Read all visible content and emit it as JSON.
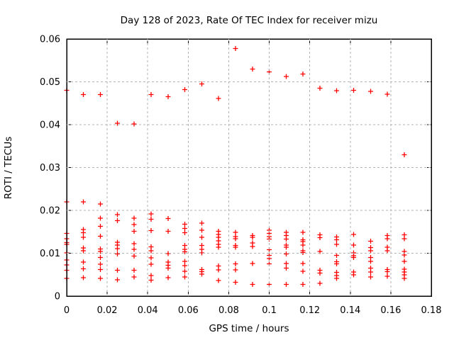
{
  "chart_data": {
    "type": "scatter",
    "title": "Day 128 of 2023, Rate Of TEC Index for receiver mizu",
    "xlabel": "GPS time / hours",
    "ylabel": "ROTI / TECUs",
    "xlim": [
      0,
      0.18
    ],
    "ylim": [
      0,
      0.06
    ],
    "xticks": [
      "0",
      "0.02",
      "0.04",
      "0.06",
      "0.08",
      "0.1",
      "0.12",
      "0.14",
      "0.16",
      "0.18"
    ],
    "yticks": [
      "0",
      "0.01",
      "0.02",
      "0.03",
      "0.04",
      "0.05",
      "0.06"
    ],
    "grid": true,
    "legend": "none",
    "marker": "plus",
    "colors": {
      "marker": "#ff0000",
      "grid": "#b3b3b3",
      "axis": "#000000",
      "text": "#000000",
      "background": "#ffffff"
    },
    "points": [
      [
        0,
        0.048
      ],
      [
        0,
        0.022
      ],
      [
        0,
        0.0146
      ],
      [
        0,
        0.0134
      ],
      [
        0,
        0.0125
      ],
      [
        0,
        0.0121
      ],
      [
        0,
        0.0101
      ],
      [
        0,
        0.0084
      ],
      [
        0,
        0.0073
      ],
      [
        0,
        0.006
      ],
      [
        0,
        0.0041
      ],
      [
        0.0083,
        0.047
      ],
      [
        0.0083,
        0.022
      ],
      [
        0.0083,
        0.0155
      ],
      [
        0.0083,
        0.0148
      ],
      [
        0.0083,
        0.0137
      ],
      [
        0.0083,
        0.0112
      ],
      [
        0.0083,
        0.0106
      ],
      [
        0.0083,
        0.0079
      ],
      [
        0.0083,
        0.0064
      ],
      [
        0.0083,
        0.0043
      ],
      [
        0.0167,
        0.047
      ],
      [
        0.0167,
        0.0215
      ],
      [
        0.0167,
        0.0182
      ],
      [
        0.0167,
        0.0163
      ],
      [
        0.0167,
        0.014
      ],
      [
        0.0167,
        0.011
      ],
      [
        0.0167,
        0.0104
      ],
      [
        0.0167,
        0.009
      ],
      [
        0.0167,
        0.0074
      ],
      [
        0.0167,
        0.0062
      ],
      [
        0.0167,
        0.0041
      ],
      [
        0.025,
        0.0403
      ],
      [
        0.025,
        0.019
      ],
      [
        0.025,
        0.0176
      ],
      [
        0.025,
        0.0126
      ],
      [
        0.025,
        0.0119
      ],
      [
        0.025,
        0.0111
      ],
      [
        0.025,
        0.0098
      ],
      [
        0.025,
        0.006
      ],
      [
        0.025,
        0.0038
      ],
      [
        0.0333,
        0.0402
      ],
      [
        0.0333,
        0.0182
      ],
      [
        0.0333,
        0.0167
      ],
      [
        0.0333,
        0.0151
      ],
      [
        0.0333,
        0.0122
      ],
      [
        0.0333,
        0.0109
      ],
      [
        0.0333,
        0.0093
      ],
      [
        0.0333,
        0.006
      ],
      [
        0.0333,
        0.0045
      ],
      [
        0.0417,
        0.047
      ],
      [
        0.0417,
        0.0192
      ],
      [
        0.0417,
        0.0179
      ],
      [
        0.0417,
        0.0153
      ],
      [
        0.0417,
        0.0115
      ],
      [
        0.0417,
        0.0106
      ],
      [
        0.0417,
        0.0089
      ],
      [
        0.0417,
        0.0074
      ],
      [
        0.0417,
        0.0048
      ],
      [
        0.0417,
        0.0037
      ],
      [
        0.05,
        0.0465
      ],
      [
        0.05,
        0.0181
      ],
      [
        0.05,
        0.0151
      ],
      [
        0.05,
        0.0099
      ],
      [
        0.05,
        0.0079
      ],
      [
        0.05,
        0.0072
      ],
      [
        0.05,
        0.0065
      ],
      [
        0.05,
        0.0043
      ],
      [
        0.0583,
        0.0482
      ],
      [
        0.0583,
        0.0168
      ],
      [
        0.0583,
        0.0158
      ],
      [
        0.0583,
        0.0148
      ],
      [
        0.0583,
        0.0118
      ],
      [
        0.0583,
        0.0109
      ],
      [
        0.0583,
        0.0103
      ],
      [
        0.0583,
        0.0081
      ],
      [
        0.0583,
        0.0071
      ],
      [
        0.0583,
        0.0058
      ],
      [
        0.0583,
        0.0045
      ],
      [
        0.0667,
        0.0495
      ],
      [
        0.0667,
        0.017
      ],
      [
        0.0667,
        0.0154
      ],
      [
        0.0667,
        0.0137
      ],
      [
        0.0667,
        0.0118
      ],
      [
        0.0667,
        0.0109
      ],
      [
        0.0667,
        0.0101
      ],
      [
        0.0667,
        0.0062
      ],
      [
        0.0667,
        0.0057
      ],
      [
        0.0667,
        0.0051
      ],
      [
        0.075,
        0.0461
      ],
      [
        0.075,
        0.0151
      ],
      [
        0.075,
        0.0144
      ],
      [
        0.075,
        0.0137
      ],
      [
        0.075,
        0.0129
      ],
      [
        0.075,
        0.0121
      ],
      [
        0.075,
        0.0114
      ],
      [
        0.075,
        0.007
      ],
      [
        0.075,
        0.0061
      ],
      [
        0.075,
        0.0036
      ],
      [
        0.0833,
        0.0578
      ],
      [
        0.0833,
        0.0149
      ],
      [
        0.0833,
        0.0139
      ],
      [
        0.0833,
        0.0134
      ],
      [
        0.0833,
        0.0118
      ],
      [
        0.0833,
        0.0114
      ],
      [
        0.0833,
        0.0075
      ],
      [
        0.0833,
        0.0061
      ],
      [
        0.0833,
        0.0032
      ],
      [
        0.0917,
        0.053
      ],
      [
        0.0917,
        0.0141
      ],
      [
        0.0917,
        0.0137
      ],
      [
        0.0917,
        0.0124
      ],
      [
        0.0917,
        0.0116
      ],
      [
        0.0917,
        0.0076
      ],
      [
        0.0917,
        0.0027
      ],
      [
        0.1,
        0.0523
      ],
      [
        0.1,
        0.0154
      ],
      [
        0.1,
        0.0146
      ],
      [
        0.1,
        0.0139
      ],
      [
        0.1,
        0.0133
      ],
      [
        0.1,
        0.0108
      ],
      [
        0.1,
        0.0095
      ],
      [
        0.1,
        0.0088
      ],
      [
        0.1,
        0.0075
      ],
      [
        0.1,
        0.0027
      ],
      [
        0.1083,
        0.0512
      ],
      [
        0.1083,
        0.0149
      ],
      [
        0.1083,
        0.0141
      ],
      [
        0.1083,
        0.0133
      ],
      [
        0.1083,
        0.0119
      ],
      [
        0.1083,
        0.0114
      ],
      [
        0.1083,
        0.0098
      ],
      [
        0.1083,
        0.0076
      ],
      [
        0.1083,
        0.0065
      ],
      [
        0.1083,
        0.0027
      ],
      [
        0.1167,
        0.0518
      ],
      [
        0.1167,
        0.0149
      ],
      [
        0.1167,
        0.0131
      ],
      [
        0.1167,
        0.0127
      ],
      [
        0.1167,
        0.0119
      ],
      [
        0.1167,
        0.0106
      ],
      [
        0.1167,
        0.0102
      ],
      [
        0.1167,
        0.0076
      ],
      [
        0.1167,
        0.0058
      ],
      [
        0.1167,
        0.0027
      ],
      [
        0.125,
        0.0485
      ],
      [
        0.125,
        0.0143
      ],
      [
        0.125,
        0.0136
      ],
      [
        0.125,
        0.0104
      ],
      [
        0.125,
        0.006
      ],
      [
        0.125,
        0.0054
      ],
      [
        0.125,
        0.003
      ],
      [
        0.1333,
        0.0479
      ],
      [
        0.1333,
        0.0138
      ],
      [
        0.1333,
        0.0131
      ],
      [
        0.1333,
        0.0121
      ],
      [
        0.1333,
        0.0095
      ],
      [
        0.1333,
        0.008
      ],
      [
        0.1333,
        0.0075
      ],
      [
        0.1333,
        0.0055
      ],
      [
        0.1333,
        0.0048
      ],
      [
        0.1333,
        0.0041
      ],
      [
        0.1417,
        0.048
      ],
      [
        0.1417,
        0.0144
      ],
      [
        0.1417,
        0.0119
      ],
      [
        0.1417,
        0.0101
      ],
      [
        0.1417,
        0.0094
      ],
      [
        0.1417,
        0.009
      ],
      [
        0.1417,
        0.0056
      ],
      [
        0.1417,
        0.005
      ],
      [
        0.15,
        0.0478
      ],
      [
        0.15,
        0.0128
      ],
      [
        0.15,
        0.0113
      ],
      [
        0.15,
        0.0106
      ],
      [
        0.15,
        0.009
      ],
      [
        0.15,
        0.0081
      ],
      [
        0.15,
        0.0065
      ],
      [
        0.15,
        0.0056
      ],
      [
        0.15,
        0.0045
      ],
      [
        0.1583,
        0.0471
      ],
      [
        0.1583,
        0.0141
      ],
      [
        0.1583,
        0.0134
      ],
      [
        0.1583,
        0.0114
      ],
      [
        0.1583,
        0.0106
      ],
      [
        0.1583,
        0.0062
      ],
      [
        0.1583,
        0.0057
      ],
      [
        0.1583,
        0.0046
      ],
      [
        0.1667,
        0.033
      ],
      [
        0.1667,
        0.0143
      ],
      [
        0.1667,
        0.0134
      ],
      [
        0.1667,
        0.0104
      ],
      [
        0.1667,
        0.0096
      ],
      [
        0.1667,
        0.0081
      ],
      [
        0.1667,
        0.0063
      ],
      [
        0.1667,
        0.0056
      ],
      [
        0.1667,
        0.005
      ],
      [
        0.1667,
        0.0041
      ]
    ]
  }
}
